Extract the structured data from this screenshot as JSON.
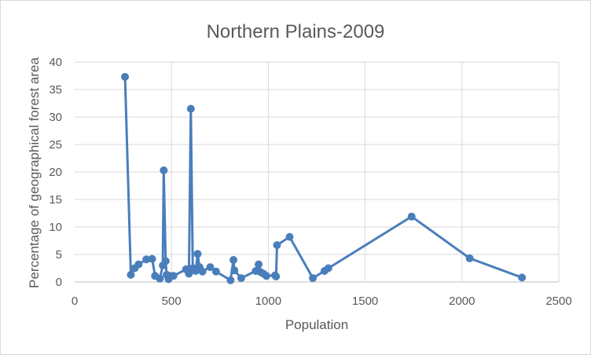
{
  "colors": {
    "series": "#4A7EBB"
  },
  "chart_data": {
    "type": "scatter",
    "title": "Northern Plains-2009",
    "xlabel": "Population",
    "ylabel": "Percentage of geographical forest area",
    "xlim": [
      0,
      2500
    ],
    "ylim": [
      0,
      40
    ],
    "xticks": [
      0,
      500,
      1000,
      1500,
      2000,
      2500
    ],
    "yticks": [
      0,
      5,
      10,
      15,
      20,
      25,
      30,
      35,
      40
    ],
    "grid": true,
    "legend": "none",
    "series": [
      {
        "x": [
          260,
          290,
          310,
          330,
          370,
          400,
          415,
          440,
          455,
          460,
          470,
          475,
          485,
          490,
          510,
          575,
          590,
          600,
          610,
          625,
          635,
          645,
          660,
          700,
          730,
          805,
          820,
          825,
          860,
          935,
          950,
          960,
          975,
          990,
          1035,
          1040,
          1045,
          1110,
          1230,
          1290,
          1310,
          1740,
          2040,
          2310
        ],
        "y": [
          37.3,
          1.3,
          2.5,
          3.2,
          4.1,
          4.2,
          1.1,
          0.6,
          3.0,
          20.3,
          3.8,
          1.3,
          0.5,
          1.1,
          1.1,
          2.3,
          1.5,
          31.5,
          2.5,
          2.0,
          5.1,
          2.7,
          1.9,
          2.7,
          1.9,
          0.3,
          4.0,
          2.1,
          0.7,
          2.0,
          3.2,
          1.8,
          1.5,
          1.1,
          1.2,
          1.0,
          6.7,
          8.2,
          0.7,
          2.0,
          2.5,
          11.9,
          4.3,
          0.8
        ]
      }
    ]
  }
}
